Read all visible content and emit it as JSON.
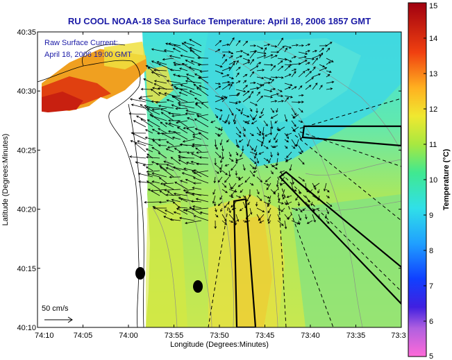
{
  "title": "RU COOL  NOAA-18  Sea Surface Temperature:  April 18, 2006 1857 GMT",
  "annotation": {
    "line1": "Raw Surface Current:",
    "line2": "April 18, 2006 19:00 GMT"
  },
  "scale_label": "50 cm/s",
  "x_axis": {
    "label": "Longitude (Degrees:Minutes)",
    "ticks": [
      "74:10",
      "74:05",
      "74:00",
      "73:55",
      "73:50",
      "73:45",
      "73:40",
      "73:35",
      "73:3"
    ]
  },
  "y_axis": {
    "label": "Latitude (Degrees:Minutes)",
    "ticks": [
      "40:35",
      "40:30",
      "40:25",
      "40:20",
      "40:15",
      "40:10"
    ]
  },
  "colorbar": {
    "label": "Temperature (°C)",
    "ticks": [
      "15",
      "14",
      "13",
      "12",
      "11",
      "10",
      "9",
      "8",
      "7",
      "6",
      "5"
    ],
    "min": 5,
    "max": 15
  },
  "colors": {
    "title": "#1a1aa6",
    "land": "#ffffff",
    "warm": "#e03a10",
    "cool": "#40d8e0"
  }
}
